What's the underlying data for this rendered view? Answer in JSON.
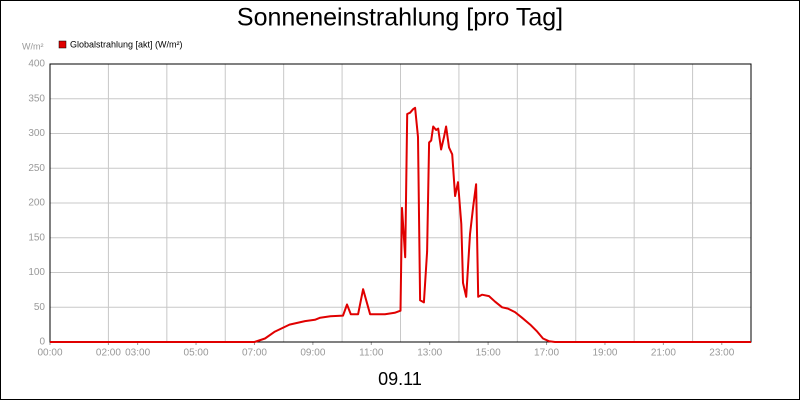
{
  "chart_data": {
    "type": "line",
    "title": "Sonneneinstrahlung [pro Tag]",
    "ylabel": "W/m²",
    "xlabel": "09.11",
    "xlim": [
      0,
      24
    ],
    "ylim": [
      0,
      400
    ],
    "yticks": [
      0,
      50,
      100,
      150,
      200,
      250,
      300,
      350,
      400
    ],
    "xticks": [
      {
        "value": 0,
        "label": "00:00"
      },
      {
        "value": 2,
        "label": "02:00"
      },
      {
        "value": 3,
        "label": "03:00"
      },
      {
        "value": 5,
        "label": "05:00"
      },
      {
        "value": 7,
        "label": "07:00"
      },
      {
        "value": 9,
        "label": "09:00"
      },
      {
        "value": 11,
        "label": "11:00"
      },
      {
        "value": 13,
        "label": "13:00"
      },
      {
        "value": 15,
        "label": "15:00"
      },
      {
        "value": 17,
        "label": "17:00"
      },
      {
        "value": 19,
        "label": "19:00"
      },
      {
        "value": 21,
        "label": "21:00"
      },
      {
        "value": 23,
        "label": "23:00"
      }
    ],
    "x_grid": [
      0,
      2,
      4,
      6,
      8,
      10,
      12,
      14,
      16,
      18,
      20,
      22,
      24
    ],
    "grid": true,
    "legend": "top-left",
    "x": [
      0,
      7.0,
      7.36,
      7.7,
      8.2,
      8.73,
      9.07,
      9.25,
      9.6,
      10.03,
      10.17,
      10.3,
      10.55,
      10.72,
      10.96,
      11.47,
      11.8,
      12.0,
      12.05,
      12.16,
      12.23,
      12.33,
      12.43,
      12.5,
      12.6,
      12.67,
      12.8,
      12.91,
      12.98,
      13.05,
      13.12,
      13.22,
      13.29,
      13.39,
      13.49,
      13.56,
      13.66,
      13.77,
      13.87,
      13.97,
      14.08,
      14.14,
      14.25,
      14.38,
      14.49,
      14.59,
      14.66,
      14.79,
      15.03,
      15.24,
      15.48,
      15.68,
      15.92,
      16.16,
      16.44,
      16.68,
      16.88,
      17.09,
      17.29,
      24
    ],
    "series": [
      {
        "name": "Globalstrahlung [akt] (W/m²)",
        "color": "#e00000",
        "values": [
          0,
          0,
          5,
          15,
          25,
          30,
          32,
          35,
          37,
          38,
          54,
          40,
          40,
          76,
          40,
          40,
          42,
          45,
          193,
          122,
          328,
          330,
          335,
          337,
          295,
          60,
          57,
          130,
          287,
          290,
          310,
          305,
          307,
          277,
          295,
          310,
          280,
          270,
          210,
          230,
          170,
          85,
          65,
          155,
          195,
          227,
          65,
          68,
          66,
          58,
          50,
          48,
          43,
          35,
          25,
          15,
          5,
          1,
          0,
          0
        ]
      }
    ]
  }
}
